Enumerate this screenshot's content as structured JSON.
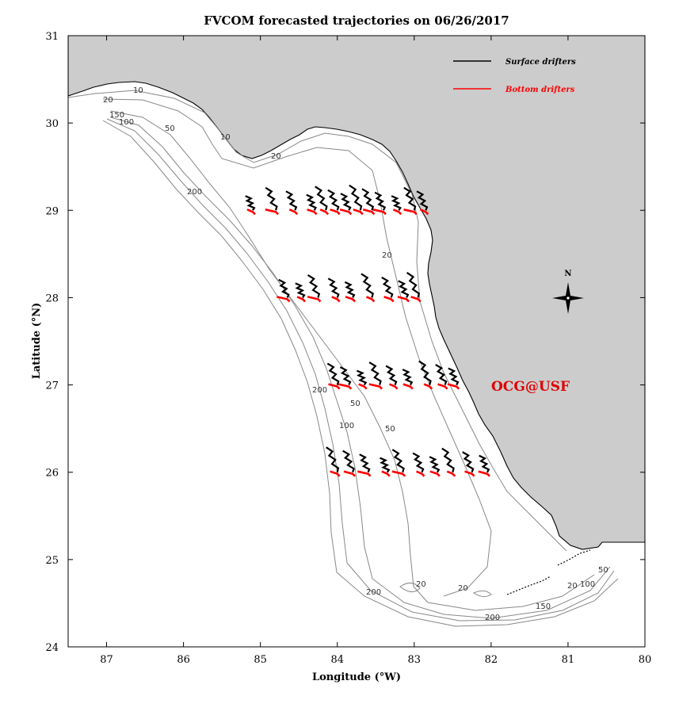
{
  "title": "FVCOM forecasted trajectories on 06/26/2017",
  "colors": {
    "surface": "#000000",
    "bottom": "#ff0000",
    "land": "#cccccc",
    "contour": "#888888",
    "watermark": "#e00000"
  },
  "axes": {
    "xlabel": "Longitude (°W)",
    "ylabel": "Latitude (°N)",
    "xlim": [
      87.5,
      80
    ],
    "ylim": [
      24,
      31
    ],
    "xticks": [
      "87",
      "86",
      "85",
      "84",
      "83",
      "82",
      "81",
      "80"
    ],
    "yticks": [
      "24",
      "25",
      "26",
      "27",
      "28",
      "29",
      "30",
      "31"
    ]
  },
  "legend": {
    "placement": "top-right",
    "surface_label": "Surface drifters",
    "bottom_label": "Bottom drifters"
  },
  "compass": {
    "label": "N",
    "icon": "compass-rose-icon"
  },
  "watermark": "OCG@USF",
  "contour_labels": [
    "10",
    "20",
    "50",
    "100",
    "150",
    "200",
    "10",
    "20",
    "50",
    "100",
    "200",
    "200",
    "20",
    "20",
    "20",
    "50",
    "150",
    "200",
    "20",
    "50",
    "100"
  ],
  "chart_data": {
    "type": "map",
    "release_latitudes": [
      29,
      28,
      27,
      26
    ],
    "lines": [
      {
        "lat": 29,
        "lon": [
          85.1,
          84.8,
          84.55,
          84.3,
          84.15,
          84.0,
          83.85,
          83.7,
          83.55,
          83.4,
          83.2,
          83.0,
          82.85
        ]
      },
      {
        "lat": 28,
        "lon": [
          84.65,
          84.45,
          84.25,
          84.0,
          83.8,
          83.55,
          83.3,
          83.1,
          82.95
        ]
      },
      {
        "lat": 27,
        "lon": [
          84.0,
          83.85,
          83.65,
          83.45,
          83.25,
          83.05,
          82.8,
          82.6,
          82.45
        ]
      },
      {
        "lat": 26,
        "lon": [
          84.0,
          83.8,
          83.6,
          83.35,
          83.15,
          82.9,
          82.7,
          82.5,
          82.25,
          82.05
        ]
      }
    ]
  }
}
